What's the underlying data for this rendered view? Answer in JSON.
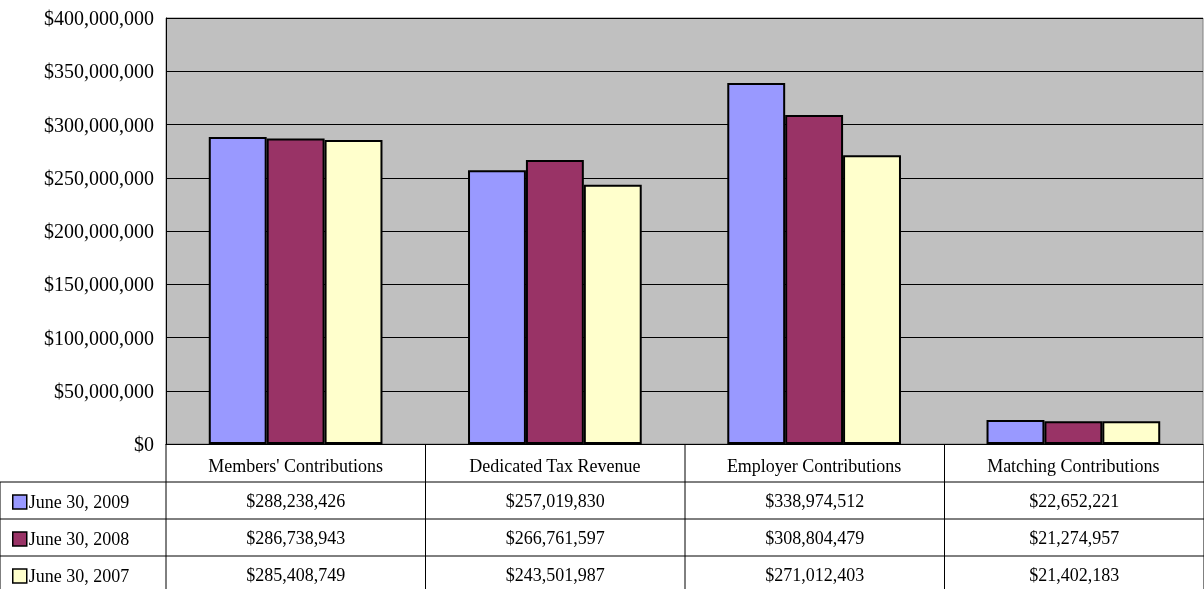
{
  "chart_data": {
    "type": "bar",
    "categories": [
      "Members' Contributions",
      "Dedicated Tax Revenue",
      "Employer Contributions",
      "Matching Contributions"
    ],
    "series": [
      {
        "name": "June 30, 2009",
        "color": "#9999ff",
        "values": [
          288238426,
          257019830,
          338974512,
          22652221
        ],
        "value_labels": [
          "$288,238,426",
          "$257,019,830",
          "$338,974,512",
          "$22,652,221"
        ]
      },
      {
        "name": "June 30, 2008",
        "color": "#993366",
        "values": [
          286738943,
          266761597,
          308804479,
          21274957
        ],
        "value_labels": [
          "$286,738,943",
          "$266,761,597",
          "$308,804,479",
          "$21,274,957"
        ]
      },
      {
        "name": "June 30, 2007",
        "color": "#ffffcc",
        "values": [
          285408749,
          243501987,
          271012403,
          21402183
        ],
        "value_labels": [
          "$285,408,749",
          "$243,501,987",
          "$271,012,403",
          "$21,402,183"
        ]
      }
    ],
    "ylim": [
      0,
      400000000
    ],
    "yticks": [
      {
        "value": 0,
        "label": "$0"
      },
      {
        "value": 50000000,
        "label": "$50,000,000"
      },
      {
        "value": 100000000,
        "label": "$100,000,000"
      },
      {
        "value": 150000000,
        "label": "$150,000,000"
      },
      {
        "value": 200000000,
        "label": "$200,000,000"
      },
      {
        "value": 250000000,
        "label": "$250,000,000"
      },
      {
        "value": 300000000,
        "label": "$300,000,000"
      },
      {
        "value": 350000000,
        "label": "$350,000,000"
      },
      {
        "value": 400000000,
        "label": "$400,000,000"
      }
    ],
    "grid": "y",
    "legend": "bottom left"
  }
}
